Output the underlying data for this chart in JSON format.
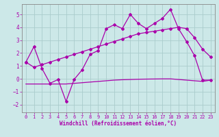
{
  "xlabel": "Windchill (Refroidissement éolien,°C)",
  "background_color": "#cce8e8",
  "grid_color": "#aacccc",
  "line_color": "#aa00aa",
  "spine_color": "#888888",
  "xlim": [
    -0.5,
    23.5
  ],
  "ylim": [
    -2.6,
    5.8
  ],
  "xticks": [
    0,
    1,
    2,
    3,
    4,
    5,
    6,
    7,
    8,
    9,
    10,
    11,
    12,
    13,
    14,
    15,
    16,
    17,
    18,
    19,
    20,
    21,
    22,
    23
  ],
  "yticks": [
    -2,
    -1,
    0,
    1,
    2,
    3,
    4,
    5
  ],
  "series1_x": [
    0,
    1,
    2,
    3,
    4,
    5,
    6,
    7,
    8,
    9,
    10,
    11,
    12,
    13,
    14,
    15,
    16,
    17,
    18,
    19,
    20,
    21,
    22,
    23
  ],
  "series1_y": [
    1.3,
    2.5,
    0.8,
    -0.35,
    -0.05,
    -1.75,
    -0.05,
    0.7,
    1.9,
    2.2,
    3.9,
    4.2,
    3.9,
    5.0,
    4.3,
    3.9,
    4.3,
    4.7,
    5.4,
    3.9,
    2.9,
    1.8,
    -0.1,
    -0.1
  ],
  "series2_x": [
    0,
    1,
    2,
    3,
    4,
    5,
    6,
    7,
    8,
    9,
    10,
    11,
    12,
    13,
    14,
    15,
    16,
    17,
    18,
    19,
    20,
    21,
    22,
    23
  ],
  "series2_y": [
    1.3,
    0.9,
    1.1,
    1.3,
    1.5,
    1.7,
    1.9,
    2.1,
    2.3,
    2.5,
    2.7,
    2.9,
    3.1,
    3.3,
    3.5,
    3.6,
    3.7,
    3.8,
    3.9,
    4.0,
    3.9,
    3.2,
    2.3,
    1.7
  ],
  "series3_x": [
    0,
    1,
    2,
    3,
    4,
    5,
    6,
    7,
    8,
    9,
    10,
    11,
    12,
    13,
    14,
    15,
    16,
    17,
    18,
    19,
    20,
    21,
    22,
    23
  ],
  "series3_y": [
    -0.4,
    -0.4,
    -0.4,
    -0.4,
    -0.4,
    -0.4,
    -0.35,
    -0.3,
    -0.25,
    -0.2,
    -0.15,
    -0.1,
    -0.07,
    -0.05,
    -0.03,
    -0.02,
    -0.01,
    0.0,
    0.0,
    -0.05,
    -0.1,
    -0.15,
    -0.2,
    -0.1
  ],
  "tick_fontsize": 5.0,
  "xlabel_fontsize": 5.5,
  "lw": 0.9,
  "ms": 2.0
}
